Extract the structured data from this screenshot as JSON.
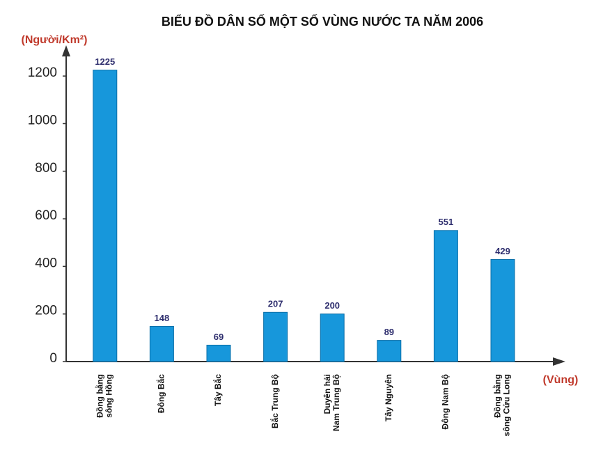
{
  "chart_data": {
    "type": "bar",
    "title": "BIỂU ĐỒ DÂN SỐ MỘT SỐ VÙNG NƯỚC TA NĂM 2006",
    "y_label": "(Người/Km²)",
    "x_label": "(Vùng)",
    "categories": [
      [
        "Đồng bằng",
        "sông Hồng"
      ],
      [
        "Đông Bắc"
      ],
      [
        "Tây Bắc"
      ],
      [
        "Bắc Trung Bộ"
      ],
      [
        "Duyên hải",
        "Nam Trung Bộ"
      ],
      [
        "Tây Nguyên"
      ],
      [
        "Đông Nam Bộ"
      ],
      [
        "Đồng bằng",
        "sông Cửu Long"
      ]
    ],
    "values": [
      1225,
      148,
      69,
      207,
      200,
      89,
      551,
      429
    ],
    "color": "#1797db",
    "ylim": [
      0,
      1300
    ],
    "yticks": [
      0,
      200,
      400,
      600,
      800,
      1000,
      1200
    ],
    "grid": false
  }
}
